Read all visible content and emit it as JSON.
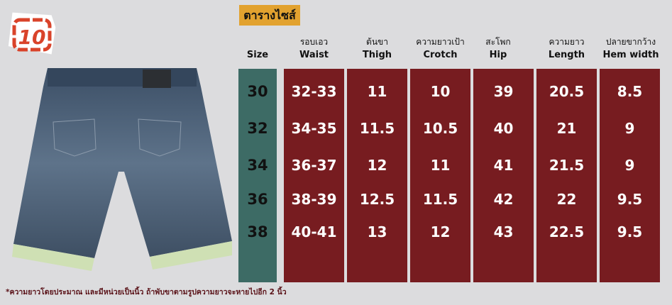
{
  "logo": {
    "text": "10",
    "color": "#d9432a"
  },
  "title": "ตารางไซส์",
  "colors": {
    "title_bg": "#e2a22f",
    "size_col": "#3d6b65",
    "data_col": "#771c20"
  },
  "headers": [
    {
      "th": "",
      "en": "Size"
    },
    {
      "th": "รอบเอว",
      "en": "Waist"
    },
    {
      "th": "ต้นขา",
      "en": "Thigh"
    },
    {
      "th": "ความยาวเป้า",
      "en": "Crotch"
    },
    {
      "th": "สะโพก",
      "en": "Hip"
    },
    {
      "th": "ความยาว",
      "en": "Length"
    },
    {
      "th": "ปลายขากว้าง",
      "en": "Hem width"
    }
  ],
  "columns": [
    [
      "30",
      "32",
      "34",
      "36",
      "38"
    ],
    [
      "32-33",
      "34-35",
      "36-37",
      "38-39",
      "40-41"
    ],
    [
      "11",
      "11.5",
      "12",
      "12.5",
      "13"
    ],
    [
      "10",
      "10.5",
      "11",
      "11.5",
      "12"
    ],
    [
      "39",
      "40",
      "41",
      "42",
      "43"
    ],
    [
      "20.5",
      "21",
      "21.5",
      "22",
      "22.5"
    ],
    [
      "8.5",
      "9",
      "9",
      "9.5",
      "9.5"
    ]
  ],
  "note": "*ความยาวโดยประมาณ และมีหน่วยเป็นนิ้ว  ถ้าพับขาตามรูปความยาวจะหายไปอีก 2 นิ้ว"
}
